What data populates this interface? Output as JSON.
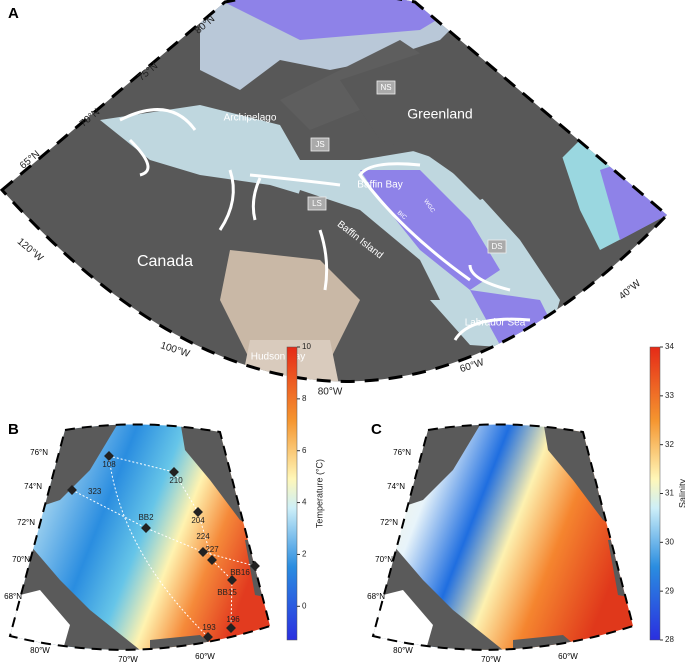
{
  "panel_a": {
    "label": "A",
    "lat_labels": [
      "80°N",
      "75°N",
      "70°N",
      "65°N"
    ],
    "lon_labels": [
      "120°W",
      "100°W",
      "80°W",
      "60°W",
      "40°W"
    ],
    "places": [
      "Greenland",
      "Archipelago",
      "Canada",
      "Baffin Bay",
      "Baffin Island",
      "Hudson Bay",
      "Labrador Sea"
    ],
    "boxes": [
      "NS",
      "JS",
      "LS",
      "DS"
    ],
    "currents": [
      "WGC",
      "BIC"
    ]
  },
  "panel_b": {
    "label": "B",
    "lat_labels": [
      "76°N",
      "74°N",
      "72°N",
      "70°N",
      "68°N"
    ],
    "lon_labels": [
      "80°W",
      "70°W",
      "60°W"
    ],
    "stations": [
      "108",
      "210",
      "323",
      "204",
      "BB2",
      "227",
      "224",
      "BB16",
      "BB15",
      "196",
      "193"
    ],
    "colorbar": {
      "label": "Temperature (°C)",
      "lim": [
        -1.3,
        10
      ],
      "ticks": [
        0,
        2,
        4,
        6,
        8,
        10
      ]
    }
  },
  "panel_c": {
    "label": "C",
    "lat_labels": [
      "76°N",
      "74°N",
      "72°N",
      "70°N",
      "68°N"
    ],
    "lon_labels": [
      "80°W",
      "70°W",
      "60°W"
    ],
    "colorbar": {
      "label": "Salinity",
      "lim": [
        28,
        34
      ],
      "ticks": [
        28,
        29,
        30,
        31,
        32,
        33,
        34
      ]
    }
  }
}
